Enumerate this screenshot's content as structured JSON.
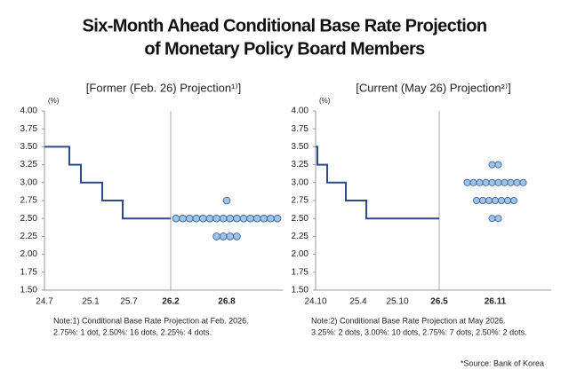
{
  "title": [
    "Six-Month Ahead Conditional Base Rate Projection",
    "of Monetary Policy Board Members"
  ],
  "source": "*Source: Bank of Korea",
  "chart_data": [
    {
      "type": "step_dot",
      "title": "[Former (Feb. 26) Projection¹⁾]",
      "y_label": "(%)",
      "categories": [
        "24.7",
        "25.1",
        "25.7",
        "26.2",
        "26.8"
      ],
      "step_values": [
        3.5,
        3.25,
        3.0,
        2.75,
        2.5
      ],
      "dots": {
        "levels": [
          2.75,
          2.5,
          2.25
        ],
        "counts": [
          1,
          16,
          4
        ]
      },
      "line_color": "#2f4a8a",
      "dot_color": "#9dc3e6",
      "ylim": [
        1.5,
        4.0
      ],
      "yticks": [
        {
          "value": 1.5,
          "label": "1.50"
        },
        {
          "value": 1.75,
          "label": "1.75"
        },
        {
          "value": 2.0,
          "label": "2.00"
        },
        {
          "value": 2.25,
          "label": "2.25"
        },
        {
          "value": 2.5,
          "label": "2.50"
        },
        {
          "value": 2.75,
          "label": "2.75"
        },
        {
          "value": 3.0,
          "label": "3.00"
        },
        {
          "value": 3.25,
          "label": "3.25"
        },
        {
          "value": 3.5,
          "label": "3.50"
        },
        {
          "value": 3.75,
          "label": "3.75"
        },
        {
          "value": 4.0,
          "label": "4.00"
        }
      ],
      "notes": [
        "Note:1) Conditional Base Rate Projection at Feb. 2026.",
        "2.75%: 1 dot, 2.50%: 16 dots, 2.25%: 4 dots."
      ]
    },
    {
      "type": "step_dot",
      "title": "[Current (May 26) Projection²⁾]",
      "y_label": "(%)",
      "categories": [
        "24.10",
        "25.4",
        "25.10",
        "26.5",
        "26.11"
      ],
      "step_values": [
        3.5,
        3.25,
        3.0,
        2.75,
        2.5
      ],
      "dots": {
        "levels": [
          3.25,
          3.0,
          2.75,
          2.5
        ],
        "counts": [
          2,
          10,
          7,
          2
        ]
      },
      "line_color": "#2f4a8a",
      "dot_color": "#9dc3e6",
      "ylim": [
        1.5,
        4.0
      ],
      "yticks": [
        {
          "value": 1.5,
          "label": "1.50"
        },
        {
          "value": 1.75,
          "label": "1.75"
        },
        {
          "value": 2.0,
          "label": "2.00"
        },
        {
          "value": 2.25,
          "label": "2.25"
        },
        {
          "value": 2.5,
          "label": "2.50"
        },
        {
          "value": 2.75,
          "label": "2.75"
        },
        {
          "value": 3.0,
          "label": "3.00"
        },
        {
          "value": 3.25,
          "label": "3.25"
        },
        {
          "value": 3.5,
          "label": "3.50"
        },
        {
          "value": 3.75,
          "label": "3.75"
        },
        {
          "value": 4.0,
          "label": "4.00"
        }
      ],
      "notes": [
        "Note:2) Conditional Base Rate Projection at May 2026.",
        "3.25%: 2 dots, 3.00%: 10 dots, 2.75%: 7 dots, 2.50%: 2 dots."
      ]
    }
  ]
}
